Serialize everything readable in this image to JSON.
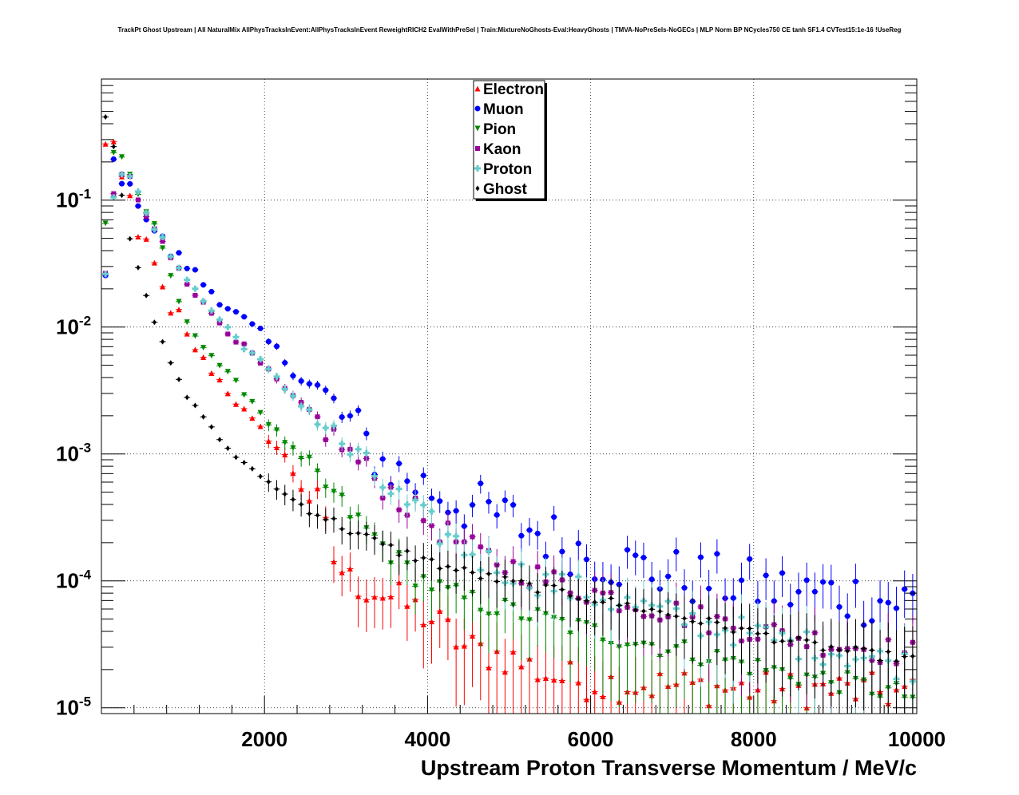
{
  "title": "TrackPt Ghost Upstream | All NaturalMix AllPhysTracksInEvent:AllPhysTracksInEvent ReweightRICH2 EvalWithPreSel | Train:MixtureNoGhosts-Eval:HeavyGhosts | TMVA-NoPreSels-NoGECs | MLP Norm BP NCycles750 CE tanh SF1.4 CVTest15:1e-16 !UseReg",
  "chart_data": {
    "type": "scatter",
    "xlabel": "Upstream Proton Transverse Momentum / MeV/c",
    "ylabel": "",
    "xlim": [
      0,
      10000
    ],
    "ylim": [
      9e-06,
      0.9
    ],
    "yscale": "log",
    "grid": true,
    "legend_position": "top-center",
    "x_ticks": [
      "2000",
      "4000",
      "6000",
      "8000",
      "10000"
    ],
    "y_ticks": [
      {
        "base": "10",
        "exp": "-1",
        "value": 0.1
      },
      {
        "base": "10",
        "exp": "-2",
        "value": 0.01
      },
      {
        "base": "10",
        "exp": "-3",
        "value": 0.001
      },
      {
        "base": "10",
        "exp": "-4",
        "value": 0.0001
      },
      {
        "base": "10",
        "exp": "-5",
        "value": 1e-05
      }
    ],
    "x_step": 100,
    "series": [
      {
        "name": "Electron",
        "color": "#ff0000",
        "marker": "triangle-up",
        "anchors": [
          [
            50,
            0.27
          ],
          [
            150,
            0.3
          ],
          [
            250,
            0.15
          ],
          [
            350,
            0.1
          ],
          [
            450,
            0.05
          ],
          [
            550,
            0.048
          ],
          [
            650,
            0.034
          ],
          [
            750,
            0.0195
          ],
          [
            850,
            0.0125
          ],
          [
            950,
            0.013
          ],
          [
            1050,
            0.0085
          ],
          [
            1250,
            0.0055
          ],
          [
            1450,
            0.0038
          ],
          [
            1650,
            0.0026
          ],
          [
            1850,
            0.0018
          ],
          [
            2050,
            0.00135
          ],
          [
            2250,
            0.00095
          ],
          [
            2450,
            0.00055
          ],
          [
            2650,
            0.0004
          ],
          [
            2850,
            0.00015
          ],
          [
            3050,
            0.0001
          ],
          [
            3250,
            9e-05
          ],
          [
            3450,
            8e-05
          ],
          [
            3650,
            7e-05
          ],
          [
            3850,
            6e-05
          ],
          [
            4050,
            5e-05
          ],
          [
            4250,
            4e-05
          ],
          [
            4450,
            3e-05
          ],
          [
            5000,
            2.5e-05
          ],
          [
            5500,
            1.8e-05
          ],
          [
            6000,
            1.6e-05
          ],
          [
            7000,
            1.5e-05
          ],
          [
            8000,
            1.4e-05
          ],
          [
            9000,
            1.4e-05
          ],
          [
            10000,
            1.3e-05
          ]
        ],
        "noise": 0.3,
        "stop_x": 10000
      },
      {
        "name": "Muon",
        "color": "#0000ff",
        "marker": "circle",
        "anchors": [
          [
            50,
            0.025
          ],
          [
            150,
            0.2
          ],
          [
            250,
            0.15
          ],
          [
            350,
            0.12
          ],
          [
            450,
            0.1
          ],
          [
            550,
            0.075
          ],
          [
            650,
            0.058
          ],
          [
            750,
            0.048
          ],
          [
            850,
            0.038
          ],
          [
            950,
            0.035
          ],
          [
            1050,
            0.031
          ],
          [
            1250,
            0.022
          ],
          [
            1450,
            0.017
          ],
          [
            1650,
            0.0125
          ],
          [
            1850,
            0.0098
          ],
          [
            2050,
            0.0075
          ],
          [
            2250,
            0.0055
          ],
          [
            2450,
            0.004
          ],
          [
            2650,
            0.003
          ],
          [
            2850,
            0.0023
          ],
          [
            3050,
            0.0017
          ],
          [
            3250,
            0.0012
          ],
          [
            3450,
            0.00085
          ],
          [
            3650,
            0.0007
          ],
          [
            3850,
            0.0006
          ],
          [
            4050,
            0.00052
          ],
          [
            4250,
            0.00045
          ],
          [
            4450,
            0.0004
          ],
          [
            4650,
            0.00036
          ],
          [
            5000,
            0.0003
          ],
          [
            5500,
            0.00022
          ],
          [
            6000,
            0.00016
          ],
          [
            6500,
            0.00013
          ],
          [
            7000,
            0.00011
          ],
          [
            7500,
            0.0001
          ],
          [
            8000,
            9e-05
          ],
          [
            8500,
            8e-05
          ],
          [
            9000,
            8e-05
          ],
          [
            9500,
            7e-05
          ],
          [
            10000,
            7e-05
          ]
        ],
        "noise": 0.45,
        "stop_x": 10000
      },
      {
        "name": "Pion",
        "color": "#008800",
        "marker": "triangle-down",
        "anchors": [
          [
            50,
            0.065
          ],
          [
            150,
            0.24
          ],
          [
            250,
            0.22
          ],
          [
            350,
            0.16
          ],
          [
            450,
            0.11
          ],
          [
            550,
            0.082
          ],
          [
            650,
            0.062
          ],
          [
            750,
            0.04
          ],
          [
            850,
            0.025
          ],
          [
            950,
            0.016
          ],
          [
            1050,
            0.0105
          ],
          [
            1250,
            0.0072
          ],
          [
            1450,
            0.005
          ],
          [
            1650,
            0.0036
          ],
          [
            1850,
            0.0026
          ],
          [
            2050,
            0.00175
          ],
          [
            2250,
            0.00125
          ],
          [
            2450,
            0.0009
          ],
          [
            2650,
            0.00065
          ],
          [
            2850,
            0.00047
          ],
          [
            3050,
            0.00034
          ],
          [
            3250,
            0.00025
          ],
          [
            3450,
            0.00019
          ],
          [
            3650,
            0.00014
          ],
          [
            3850,
            0.00011
          ],
          [
            4050,
            9.2e-05
          ],
          [
            4250,
            8e-05
          ],
          [
            4450,
            7.2e-05
          ],
          [
            4650,
            6.6e-05
          ],
          [
            5000,
            5.8e-05
          ],
          [
            5500,
            4.8e-05
          ],
          [
            6000,
            4e-05
          ],
          [
            6500,
            3.4e-05
          ],
          [
            7000,
            2.9e-05
          ],
          [
            7500,
            2.5e-05
          ],
          [
            8000,
            2.1e-05
          ],
          [
            8500,
            1.8e-05
          ],
          [
            9000,
            1.6e-05
          ],
          [
            9500,
            1.4e-05
          ],
          [
            10000,
            1.2e-05
          ]
        ],
        "noise": 0.18,
        "stop_x": 10000
      },
      {
        "name": "Kaon",
        "color": "#990099",
        "marker": "square",
        "anchors": [
          [
            50,
            0.025
          ],
          [
            150,
            0.11
          ],
          [
            250,
            0.16
          ],
          [
            350,
            0.15
          ],
          [
            450,
            0.1
          ],
          [
            550,
            0.074
          ],
          [
            650,
            0.058
          ],
          [
            750,
            0.046
          ],
          [
            850,
            0.036
          ],
          [
            950,
            0.03
          ],
          [
            1050,
            0.023
          ],
          [
            1250,
            0.015
          ],
          [
            1450,
            0.011
          ],
          [
            1650,
            0.008
          ],
          [
            1850,
            0.006
          ],
          [
            2050,
            0.0044
          ],
          [
            2250,
            0.0032
          ],
          [
            2450,
            0.0024
          ],
          [
            2650,
            0.0018
          ],
          [
            2850,
            0.00135
          ],
          [
            3050,
            0.001
          ],
          [
            3250,
            0.00075
          ],
          [
            3450,
            0.00057
          ],
          [
            3650,
            0.00044
          ],
          [
            3850,
            0.00035
          ],
          [
            4050,
            0.00028
          ],
          [
            4250,
            0.00023
          ],
          [
            4450,
            0.00019
          ],
          [
            4650,
            0.00016
          ],
          [
            5000,
            0.00013
          ],
          [
            5500,
            0.0001
          ],
          [
            6000,
            8.2e-05
          ],
          [
            6500,
            6.8e-05
          ],
          [
            7000,
            5.7e-05
          ],
          [
            7500,
            4.8e-05
          ],
          [
            8000,
            4.1e-05
          ],
          [
            8500,
            3.6e-05
          ],
          [
            9000,
            3.2e-05
          ],
          [
            9500,
            2.9e-05
          ],
          [
            10000,
            2.6e-05
          ]
        ],
        "noise": 0.22,
        "stop_x": 10000
      },
      {
        "name": "Proton",
        "color": "#66cccc",
        "marker": "cross",
        "anchors": [
          [
            50,
            0.025
          ],
          [
            150,
            0.11
          ],
          [
            250,
            0.17
          ],
          [
            350,
            0.16
          ],
          [
            450,
            0.11
          ],
          [
            550,
            0.076
          ],
          [
            650,
            0.06
          ],
          [
            750,
            0.048
          ],
          [
            850,
            0.037
          ],
          [
            950,
            0.031
          ],
          [
            1050,
            0.024
          ],
          [
            1250,
            0.016
          ],
          [
            1450,
            0.0115
          ],
          [
            1650,
            0.0083
          ],
          [
            1850,
            0.0062
          ],
          [
            2050,
            0.0045
          ],
          [
            2250,
            0.0033
          ],
          [
            2450,
            0.0025
          ],
          [
            2650,
            0.0019
          ],
          [
            2850,
            0.0014
          ],
          [
            3050,
            0.00105
          ],
          [
            3250,
            0.00078
          ],
          [
            3450,
            0.00058
          ],
          [
            3650,
            0.00044
          ],
          [
            3850,
            0.00034
          ],
          [
            4050,
            0.00027
          ],
          [
            4250,
            0.00022
          ],
          [
            4450,
            0.00018
          ],
          [
            4650,
            0.00015
          ],
          [
            5000,
            0.00012
          ],
          [
            5500,
            9.5e-05
          ],
          [
            6000,
            7.8e-05
          ],
          [
            6500,
            6.4e-05
          ],
          [
            7000,
            5.3e-05
          ],
          [
            7500,
            4.4e-05
          ],
          [
            8000,
            3.8e-05
          ],
          [
            8500,
            3.2e-05
          ],
          [
            9000,
            2.8e-05
          ],
          [
            9500,
            2.4e-05
          ],
          [
            10000,
            2.1e-05
          ]
        ],
        "noise": 0.25,
        "stop_x": 10000
      },
      {
        "name": "Ghost",
        "color": "#000000",
        "marker": "diamond",
        "anchors": [
          [
            50,
            0.45
          ],
          [
            150,
            0.27
          ],
          [
            250,
            0.11
          ],
          [
            350,
            0.05
          ],
          [
            450,
            0.03
          ],
          [
            550,
            0.018
          ],
          [
            650,
            0.011
          ],
          [
            750,
            0.0075
          ],
          [
            850,
            0.0052
          ],
          [
            950,
            0.0038
          ],
          [
            1050,
            0.0028
          ],
          [
            1250,
            0.002
          ],
          [
            1450,
            0.0013
          ],
          [
            1650,
            0.00095
          ],
          [
            1850,
            0.00075
          ],
          [
            2050,
            0.0006
          ],
          [
            2250,
            0.00048
          ],
          [
            2450,
            0.0004
          ],
          [
            2650,
            0.00034
          ],
          [
            2850,
            0.00029
          ],
          [
            3050,
            0.00025
          ],
          [
            3250,
            0.00022
          ],
          [
            3450,
            0.00019
          ],
          [
            3650,
            0.00017
          ],
          [
            3850,
            0.000155
          ],
          [
            4050,
            0.00014
          ],
          [
            4250,
            0.000128
          ],
          [
            4450,
            0.000118
          ],
          [
            4650,
            0.00011
          ],
          [
            5000,
            9.8e-05
          ],
          [
            5500,
            8.5e-05
          ],
          [
            6000,
            7.3e-05
          ],
          [
            6500,
            6.3e-05
          ],
          [
            7000,
            5.4e-05
          ],
          [
            7500,
            4.6e-05
          ],
          [
            8000,
            3.9e-05
          ],
          [
            8500,
            3.3e-05
          ],
          [
            9000,
            2.9e-05
          ],
          [
            9500,
            2.6e-05
          ],
          [
            10000,
            2.4e-05
          ]
        ],
        "noise": 0.08,
        "stop_x": 10000
      }
    ]
  }
}
